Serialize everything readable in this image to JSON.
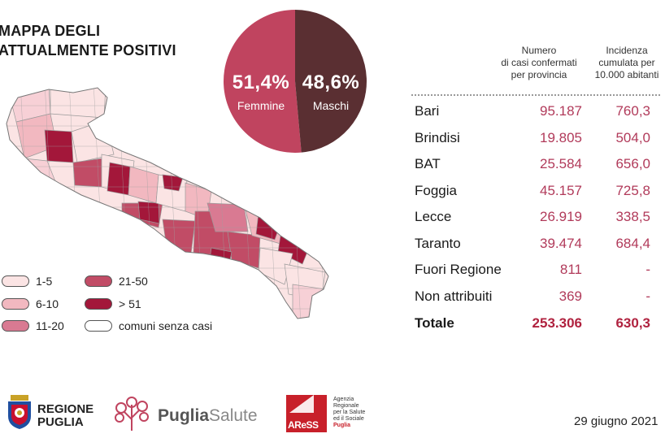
{
  "title": {
    "line1": "MAPPA DEGLI",
    "line2": "ATTUALMENTE POSITIVI"
  },
  "gender": {
    "female": {
      "percent": "51,4%",
      "label": "Femmine",
      "value": 51.4,
      "color": "#c0445f"
    },
    "male": {
      "percent": "48,6%",
      "label": "Maschi",
      "value": 48.6,
      "color": "#5a2f32"
    }
  },
  "table": {
    "col1_header": [
      "Numero",
      "di casi confermati",
      "per provincia"
    ],
    "col2_header": [
      "Incidenza",
      "cumulata per",
      "10.000 abitanti"
    ],
    "rows": [
      {
        "name": "Bari",
        "cases": "95.187",
        "incidence": "760,3"
      },
      {
        "name": "Brindisi",
        "cases": "19.805",
        "incidence": "504,0"
      },
      {
        "name": "BAT",
        "cases": "25.584",
        "incidence": "656,0"
      },
      {
        "name": "Foggia",
        "cases": "45.157",
        "incidence": "725,8"
      },
      {
        "name": "Lecce",
        "cases": "26.919",
        "incidence": "338,5"
      },
      {
        "name": "Taranto",
        "cases": "39.474",
        "incidence": "684,4"
      },
      {
        "name": "Fuori Regione",
        "cases": "811",
        "incidence": "-"
      },
      {
        "name": "Non attribuiti",
        "cases": "369",
        "incidence": "-"
      }
    ],
    "total": {
      "name": "Totale",
      "cases": "253.306",
      "incidence": "630,3"
    }
  },
  "legend": {
    "l1": "1-5",
    "l2": "6-10",
    "l3": "11-20",
    "l4": "21-50",
    "l5": "> 51",
    "l6": "comuni senza casi",
    "colors": {
      "c1": "#fbe4e4",
      "c2": "#f2b8c0",
      "c3": "#d97a92",
      "c4": "#c14c66",
      "c5": "#a3173a",
      "c6": "#ffffff"
    }
  },
  "logos": {
    "regione": {
      "line1": "REGIONE",
      "line2": "PUGLIA"
    },
    "puglia_salute": {
      "bold": "Puglia",
      "light": "Salute"
    },
    "aress": {
      "mark": "AReSS",
      "l1": "Agenzia",
      "l2": "Regionale",
      "l3": "per la Salute",
      "l4": "ed il Sociale",
      "l5": "Puglia"
    }
  },
  "date": "29 giugno 2021"
}
